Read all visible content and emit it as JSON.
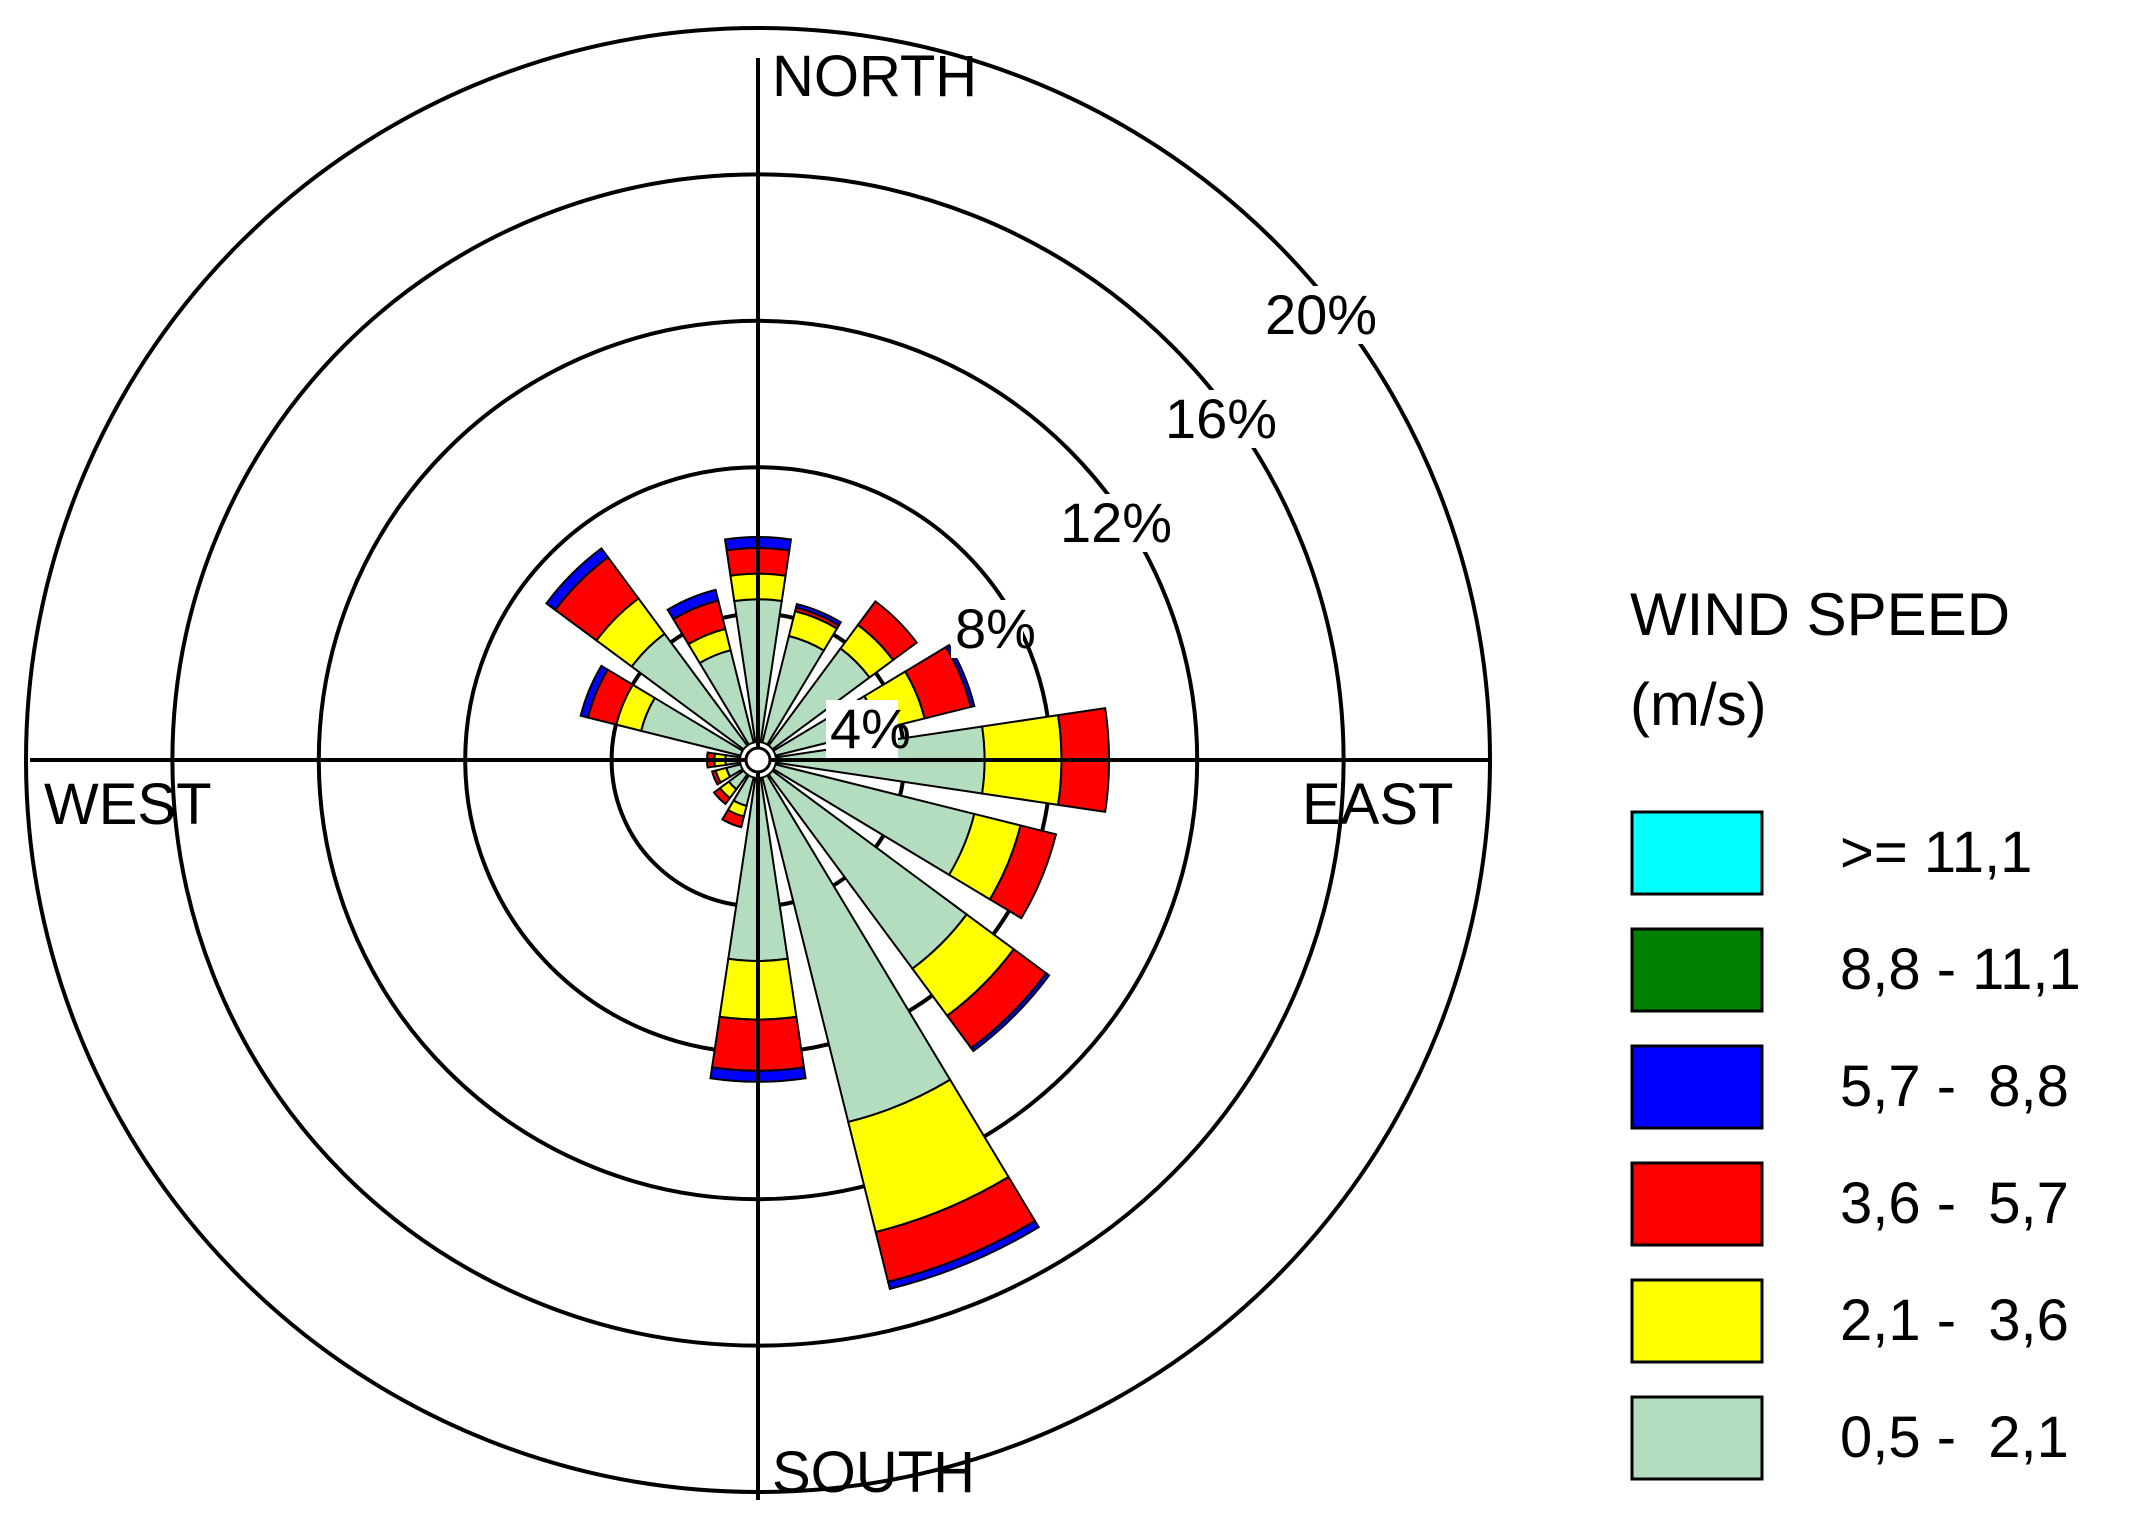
{
  "chart_data": {
    "type": "wind-rose",
    "legend_title_line1": "WIND SPEED",
    "legend_title_line2": "(m/s)",
    "compass": {
      "north": "NORTH",
      "south": "SOUTH",
      "east": "EAST",
      "west": "WEST"
    },
    "rings": [
      4,
      8,
      12,
      16,
      20
    ],
    "ring_labels": [
      "4%",
      "8%",
      "12%",
      "16%",
      "20%"
    ],
    "speed_bins": [
      {
        "label": ">= 11,1",
        "color": "#00ffff"
      },
      {
        "label": "8,8 - 11,1",
        "color": "#008000"
      },
      {
        "label": "5,7 -  8,8",
        "color": "#0000ff"
      },
      {
        "label": "3,6 -  5,7",
        "color": "#ff0000"
      },
      {
        "label": "2,1 -  3,6",
        "color": "#ffff00"
      },
      {
        "label": "0,5 -  2,1",
        "color": "#b4dcbe"
      }
    ],
    "directions_deg": [
      0,
      22.5,
      45,
      67.5,
      90,
      112.5,
      135,
      157.5,
      180,
      202.5,
      225,
      247.5,
      270,
      292.5,
      315,
      337.5
    ],
    "series": [
      {
        "name": "0,5 -  2,1",
        "values": [
          3.9,
          3.0,
          3.3,
          2.9,
          5.7,
          5.6,
          6.6,
          9.7,
          5.0,
          0.8,
          0.5,
          0.4,
          0.4,
          2.8,
          3.8,
          2.6
        ]
      },
      {
        "name": "2,1 -  3,6",
        "values": [
          0.7,
          0.7,
          0.8,
          1.3,
          2.1,
          1.3,
          1.6,
          3.1,
          1.6,
          0.3,
          0.3,
          0.3,
          0.3,
          0.7,
          1.2,
          0.6
        ]
      },
      {
        "name": "3,6 -  5,7",
        "values": [
          0.7,
          0.1,
          0.8,
          1.3,
          1.3,
          1.0,
          1.1,
          1.4,
          1.4,
          0.3,
          0.2,
          0.1,
          0.2,
          0.8,
          1.4,
          0.8
        ]
      },
      {
        "name": "5,7 -  8,8",
        "values": [
          0.3,
          0.1,
          0.0,
          0.1,
          0.0,
          0.0,
          0.1,
          0.2,
          0.3,
          0.0,
          0.0,
          0.0,
          0.0,
          0.2,
          0.3,
          0.3
        ]
      },
      {
        "name": "8,8 - 11,1",
        "values": [
          0,
          0,
          0,
          0,
          0,
          0,
          0,
          0,
          0,
          0,
          0,
          0,
          0,
          0,
          0,
          0
        ]
      },
      {
        "name": ">= 11,1",
        "values": [
          0,
          0,
          0,
          0,
          0,
          0,
          0,
          0,
          0,
          0,
          0,
          0,
          0,
          0,
          0,
          0
        ]
      }
    ]
  }
}
